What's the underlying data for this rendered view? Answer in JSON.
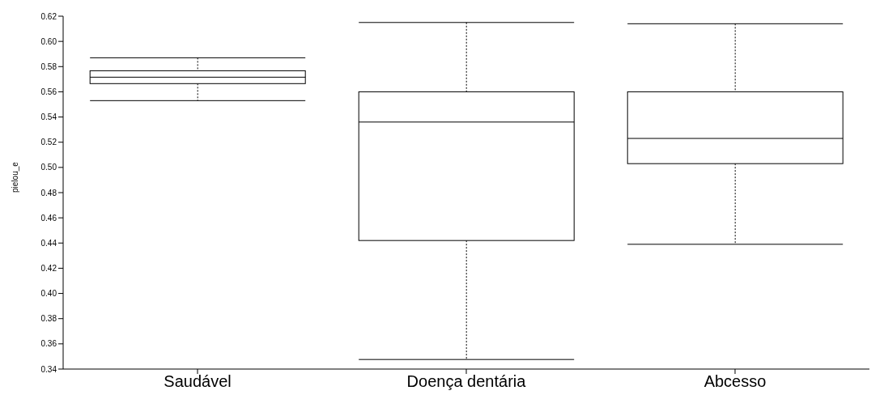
{
  "chart_data": {
    "type": "box",
    "ylabel": "pielou_e",
    "color": "#000000",
    "categories": [
      "Saudável",
      "Doença dentária",
      "Abcesso"
    ],
    "boxes": [
      {
        "low": 0.553,
        "q1": 0.5665,
        "median": 0.5716,
        "q3": 0.5767,
        "high": 0.587
      },
      {
        "low": 0.3476,
        "q1": 0.442,
        "median": 0.536,
        "q3": 0.56,
        "high": 0.615
      },
      {
        "low": 0.439,
        "q1": 0.503,
        "median": 0.523,
        "q3": 0.56,
        "high": 0.614
      }
    ],
    "ylim": [
      0.34,
      0.62
    ],
    "yticks": [
      0.34,
      0.36,
      0.38,
      {
        "value": 0.4,
        "label": "0.40"
      },
      0.42,
      0.44,
      0.46,
      0.48,
      {
        "value": 0.5,
        "label": "0.50"
      },
      0.52,
      0.54,
      0.56,
      0.58,
      {
        "value": 0.6,
        "label": "0.60"
      },
      0.62
    ]
  }
}
